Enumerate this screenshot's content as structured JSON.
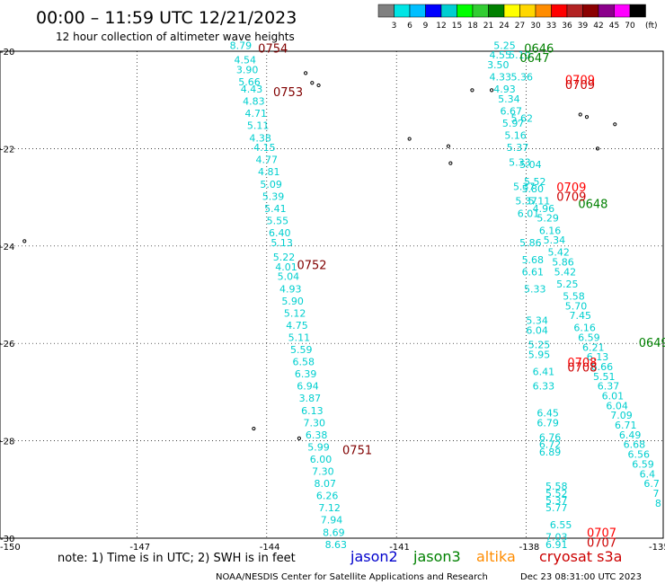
{
  "title": "00:00 – 11:59 UTC 12/21/2023",
  "subtitle": "12 hour collection of altimeter wave heights",
  "colorbar": {
    "labels": [
      "3",
      "6",
      "9",
      "12",
      "15",
      "18",
      "21",
      "24",
      "27",
      "30",
      "33",
      "36",
      "39",
      "42",
      "45",
      "70"
    ],
    "unit": "(ft)",
    "colors": [
      "#808080",
      "#00e5e5",
      "#00bfff",
      "#0000ff",
      "#00ced1",
      "#00ff00",
      "#32cd32",
      "#008000",
      "#ffff00",
      "#ffd700",
      "#ff8c00",
      "#ff0000",
      "#b22222",
      "#8b0000",
      "#8b008b",
      "#ff00ff",
      "#000000"
    ]
  },
  "axes": {
    "lon_labels": [
      "-150",
      "-147",
      "-144",
      "-141",
      "-138",
      "-135"
    ],
    "lat_labels": [
      "-20",
      "-22",
      "-24",
      "-26",
      "-28",
      "-30"
    ]
  },
  "footer": {
    "note": "note:  1) Time is in UTC;  2) SWH is in feet",
    "credit": "NOAA/NESDIS Center for Satellite Applications and Research",
    "generated": "Dec 23 08:31:00 UTC 2023"
  },
  "legend": [
    {
      "label": "jason2",
      "color": "#0000cc"
    },
    {
      "label": "jason3",
      "color": "#008000"
    },
    {
      "label": "altika",
      "color": "#ff8c00"
    },
    {
      "label": "cryosat s3a",
      "color": "#cc0000"
    }
  ],
  "tracks": [
    {
      "name": "track-a",
      "color": "#00cfcf",
      "points": [
        {
          "lon": -144.6,
          "lat": -19.95,
          "v": "8.79"
        },
        {
          "lon": -144.5,
          "lat": -20.25,
          "v": "4.54"
        },
        {
          "lon": -144.45,
          "lat": -20.45,
          "v": "3.90"
        },
        {
          "lon": -144.4,
          "lat": -20.7,
          "v": "5.66"
        },
        {
          "lon": -144.35,
          "lat": -20.85,
          "v": "4.43"
        },
        {
          "lon": -144.3,
          "lat": -21.1,
          "v": "4.83"
        },
        {
          "lon": -144.25,
          "lat": -21.35,
          "v": "4.71"
        },
        {
          "lon": -144.2,
          "lat": -21.6,
          "v": "5.11"
        },
        {
          "lon": -144.15,
          "lat": -21.85,
          "v": "4.38"
        },
        {
          "lon": -144.05,
          "lat": -22.05,
          "v": "4.15"
        },
        {
          "lon": -144.0,
          "lat": -22.3,
          "v": "4.77"
        },
        {
          "lon": -143.95,
          "lat": -22.55,
          "v": "4.81"
        },
        {
          "lon": -143.9,
          "lat": -22.8,
          "v": "5.09"
        },
        {
          "lon": -143.85,
          "lat": -23.05,
          "v": "5.39"
        },
        {
          "lon": -143.8,
          "lat": -23.3,
          "v": "5.41"
        },
        {
          "lon": -143.75,
          "lat": -23.55,
          "v": "5.55"
        },
        {
          "lon": -143.7,
          "lat": -23.8,
          "v": "6.40"
        },
        {
          "lon": -143.65,
          "lat": -24.0,
          "v": "5.13"
        },
        {
          "lon": -143.6,
          "lat": -24.3,
          "v": "5.22"
        },
        {
          "lon": -143.55,
          "lat": -24.5,
          "v": "4.01"
        },
        {
          "lon": -143.5,
          "lat": -24.7,
          "v": "5.04"
        },
        {
          "lon": -143.45,
          "lat": -24.95,
          "v": "4.93"
        },
        {
          "lon": -143.4,
          "lat": -25.2,
          "v": "5.90"
        },
        {
          "lon": -143.35,
          "lat": -25.45,
          "v": "5.12"
        },
        {
          "lon": -143.3,
          "lat": -25.7,
          "v": "4.75"
        },
        {
          "lon": -143.25,
          "lat": -25.95,
          "v": "5.11"
        },
        {
          "lon": -143.2,
          "lat": -26.2,
          "v": "5.59"
        },
        {
          "lon": -143.15,
          "lat": -26.45,
          "v": "6.58"
        },
        {
          "lon": -143.1,
          "lat": -26.7,
          "v": "6.39"
        },
        {
          "lon": -143.05,
          "lat": -26.95,
          "v": "6.94"
        },
        {
          "lon": -143.0,
          "lat": -27.2,
          "v": "3.87"
        },
        {
          "lon": -142.95,
          "lat": -27.45,
          "v": "6.13"
        },
        {
          "lon": -142.9,
          "lat": -27.7,
          "v": "7.30"
        },
        {
          "lon": -142.85,
          "lat": -27.95,
          "v": "6.38"
        },
        {
          "lon": -142.8,
          "lat": -28.2,
          "v": "5.99"
        },
        {
          "lon": -142.75,
          "lat": -28.45,
          "v": "6.00"
        },
        {
          "lon": -142.7,
          "lat": -28.7,
          "v": "7.30"
        },
        {
          "lon": -142.65,
          "lat": -28.95,
          "v": "8.07"
        },
        {
          "lon": -142.6,
          "lat": -29.2,
          "v": "6.26"
        },
        {
          "lon": -142.55,
          "lat": -29.45,
          "v": "7.12"
        },
        {
          "lon": -142.5,
          "lat": -29.7,
          "v": "7.94"
        },
        {
          "lon": -142.45,
          "lat": -29.95,
          "v": "8.69"
        },
        {
          "lon": -142.4,
          "lat": -30.2,
          "v": "8.63"
        }
      ]
    },
    {
      "name": "track-b",
      "color": "#00cfcf",
      "points": [
        {
          "lon": -138.5,
          "lat": -19.95,
          "v": "5.25"
        },
        {
          "lon": -138.6,
          "lat": -20.15,
          "v": "4.55"
        },
        {
          "lon": -138.65,
          "lat": -20.35,
          "v": "3.50"
        },
        {
          "lon": -138.6,
          "lat": -20.6,
          "v": "4.33"
        },
        {
          "lon": -138.5,
          "lat": -20.85,
          "v": "4.93"
        },
        {
          "lon": -138.4,
          "lat": -21.05,
          "v": "5.34"
        },
        {
          "lon": -138.35,
          "lat": -21.3,
          "v": "6.67"
        },
        {
          "lon": -138.3,
          "lat": -21.55,
          "v": "5.97"
        },
        {
          "lon": -138.25,
          "lat": -21.8,
          "v": "5.16"
        },
        {
          "lon": -138.2,
          "lat": -22.05,
          "v": "5.37"
        },
        {
          "lon": -138.15,
          "lat": -22.35,
          "v": "5.33"
        },
        {
          "lon": -138.05,
          "lat": -22.85,
          "v": "5.37"
        },
        {
          "lon": -138.0,
          "lat": -23.15,
          "v": "5.37"
        },
        {
          "lon": -137.95,
          "lat": -23.4,
          "v": "6.01"
        },
        {
          "lon": -137.9,
          "lat": -24.0,
          "v": "5.86"
        },
        {
          "lon": -137.85,
          "lat": -24.35,
          "v": "5.68"
        },
        {
          "lon": -137.85,
          "lat": -24.6,
          "v": "6.61"
        },
        {
          "lon": -137.8,
          "lat": -24.95,
          "v": "5.33"
        },
        {
          "lon": -137.75,
          "lat": -25.6,
          "v": "5.34"
        },
        {
          "lon": -137.75,
          "lat": -25.8,
          "v": "6.04"
        },
        {
          "lon": -137.7,
          "lat": -26.1,
          "v": "5.25"
        },
        {
          "lon": -137.7,
          "lat": -26.3,
          "v": "5.95"
        },
        {
          "lon": -137.6,
          "lat": -26.65,
          "v": "6.41"
        },
        {
          "lon": -137.6,
          "lat": -26.95,
          "v": "6.33"
        },
        {
          "lon": -137.5,
          "lat": -27.5,
          "v": "6.45"
        },
        {
          "lon": -137.5,
          "lat": -27.7,
          "v": "6.79"
        },
        {
          "lon": -137.45,
          "lat": -28.0,
          "v": "6.76"
        },
        {
          "lon": -137.45,
          "lat": -28.15,
          "v": "6.72"
        },
        {
          "lon": -137.45,
          "lat": -28.3,
          "v": "6.89"
        },
        {
          "lon": -137.3,
          "lat": -29.0,
          "v": "5.58"
        },
        {
          "lon": -137.3,
          "lat": -29.15,
          "v": "5.52"
        },
        {
          "lon": -137.3,
          "lat": -29.3,
          "v": "5.37"
        },
        {
          "lon": -137.3,
          "lat": -29.45,
          "v": "5.77"
        },
        {
          "lon": -137.2,
          "lat": -29.8,
          "v": "6.55"
        },
        {
          "lon": -137.3,
          "lat": -30.05,
          "v": "7.03"
        },
        {
          "lon": -137.3,
          "lat": -30.2,
          "v": "6.91"
        }
      ]
    },
    {
      "name": "track-c",
      "color": "#00cfcf",
      "points": [
        {
          "lon": -138.15,
          "lat": -20.15,
          "v": "5.10"
        },
        {
          "lon": -138.1,
          "lat": -20.6,
          "v": "5.36"
        },
        {
          "lon": -138.1,
          "lat": -21.45,
          "v": "5.62"
        },
        {
          "lon": -137.9,
          "lat": -22.4,
          "v": "5.04"
        },
        {
          "lon": -137.8,
          "lat": -22.75,
          "v": "5.52"
        },
        {
          "lon": -137.85,
          "lat": -22.9,
          "v": "5.80"
        },
        {
          "lon": -137.7,
          "lat": -23.15,
          "v": "5.11"
        },
        {
          "lon": -137.6,
          "lat": -23.3,
          "v": "4.96"
        },
        {
          "lon": -137.5,
          "lat": -23.5,
          "v": "5.29"
        },
        {
          "lon": -137.45,
          "lat": -23.75,
          "v": "6.16"
        },
        {
          "lon": -137.35,
          "lat": -23.95,
          "v": "5.34"
        },
        {
          "lon": -137.25,
          "lat": -24.2,
          "v": "5.42"
        },
        {
          "lon": -137.15,
          "lat": -24.4,
          "v": "5.86"
        },
        {
          "lon": -137.1,
          "lat": -24.6,
          "v": "5.42"
        },
        {
          "lon": -137.05,
          "lat": -24.85,
          "v": "5.25"
        },
        {
          "lon": -136.9,
          "lat": -25.1,
          "v": "5.58"
        },
        {
          "lon": -136.85,
          "lat": -25.3,
          "v": "5.70"
        },
        {
          "lon": -136.75,
          "lat": -25.5,
          "v": "7.45"
        },
        {
          "lon": -136.65,
          "lat": -25.75,
          "v": "6.16"
        },
        {
          "lon": -136.55,
          "lat": -25.95,
          "v": "6.59"
        },
        {
          "lon": -136.45,
          "lat": -26.15,
          "v": "6.21"
        },
        {
          "lon": -136.35,
          "lat": -26.35,
          "v": "6.13"
        },
        {
          "lon": -136.25,
          "lat": -26.55,
          "v": "6.66"
        },
        {
          "lon": -136.2,
          "lat": -26.75,
          "v": "5.51"
        },
        {
          "lon": -136.1,
          "lat": -26.95,
          "v": "6.37"
        },
        {
          "lon": -136.0,
          "lat": -27.15,
          "v": "6.01"
        },
        {
          "lon": -135.9,
          "lat": -27.35,
          "v": "6.04"
        },
        {
          "lon": -135.8,
          "lat": -27.55,
          "v": "7.09"
        },
        {
          "lon": -135.7,
          "lat": -27.75,
          "v": "6.71"
        },
        {
          "lon": -135.6,
          "lat": -27.95,
          "v": "6.49"
        },
        {
          "lon": -135.5,
          "lat": -28.15,
          "v": "6.68"
        },
        {
          "lon": -135.4,
          "lat": -28.35,
          "v": "6.56"
        },
        {
          "lon": -135.3,
          "lat": -28.55,
          "v": "6.59"
        },
        {
          "lon": -135.2,
          "lat": -28.75,
          "v": "6.4"
        },
        {
          "lon": -135.1,
          "lat": -28.95,
          "v": "6.7"
        },
        {
          "lon": -135.0,
          "lat": -29.15,
          "v": "7"
        },
        {
          "lon": -134.95,
          "lat": -29.35,
          "v": "8"
        }
      ]
    }
  ],
  "time_labels": [
    {
      "lon": -144.2,
      "lat": -19.95,
      "v": "0754",
      "color": "#800000"
    },
    {
      "lon": -143.85,
      "lat": -20.85,
      "v": "0753",
      "color": "#800000"
    },
    {
      "lon": -143.3,
      "lat": -24.4,
      "v": "0752",
      "color": "#800000"
    },
    {
      "lon": -142.25,
      "lat": -28.2,
      "v": "0751",
      "color": "#800000"
    },
    {
      "lon": -138.05,
      "lat": -19.95,
      "v": "0646",
      "color": "#008000"
    },
    {
      "lon": -138.15,
      "lat": -20.15,
      "v": "0647",
      "color": "#008000"
    },
    {
      "lon": -136.8,
      "lat": -23.15,
      "v": "0648",
      "color": "#008000"
    },
    {
      "lon": -135.4,
      "lat": -26.0,
      "v": "0649",
      "color": "#008000"
    },
    {
      "lon": -137.1,
      "lat": -20.6,
      "v": "0709",
      "color": "#ff0000"
    },
    {
      "lon": -137.1,
      "lat": -20.7,
      "v": "0709",
      "color": "#cc0000"
    },
    {
      "lon": -137.3,
      "lat": -22.8,
      "v": "0709",
      "color": "#ff0000"
    },
    {
      "lon": -137.3,
      "lat": -23.0,
      "v": "0709",
      "color": "#cc0000"
    },
    {
      "lon": -137.05,
      "lat": -26.4,
      "v": "0708",
      "color": "#ff0000"
    },
    {
      "lon": -137.05,
      "lat": -26.5,
      "v": "0708",
      "color": "#cc0000"
    },
    {
      "lon": -136.6,
      "lat": -29.9,
      "v": "0707",
      "color": "#ff0000"
    },
    {
      "lon": -136.6,
      "lat": -30.1,
      "v": "0707",
      "color": "#cc0000"
    }
  ],
  "islands": [
    {
      "lon": -150.5,
      "lat": -23.3
    },
    {
      "lon": -149.6,
      "lat": -23.9
    },
    {
      "lon": -143.1,
      "lat": -20.45
    },
    {
      "lon": -142.95,
      "lat": -20.65
    },
    {
      "lon": -142.8,
      "lat": -20.7
    },
    {
      "lon": -140.7,
      "lat": -21.8
    },
    {
      "lon": -139.8,
      "lat": -21.95
    },
    {
      "lon": -139.75,
      "lat": -22.3
    },
    {
      "lon": -139.25,
      "lat": -20.8
    },
    {
      "lon": -138.8,
      "lat": -20.8
    },
    {
      "lon": -136.75,
      "lat": -21.3
    },
    {
      "lon": -136.6,
      "lat": -21.35
    },
    {
      "lon": -136.35,
      "lat": -22.0
    },
    {
      "lon": -135.95,
      "lat": -21.5
    },
    {
      "lon": -144.3,
      "lat": -27.75
    },
    {
      "lon": -143.25,
      "lat": -27.95
    }
  ]
}
